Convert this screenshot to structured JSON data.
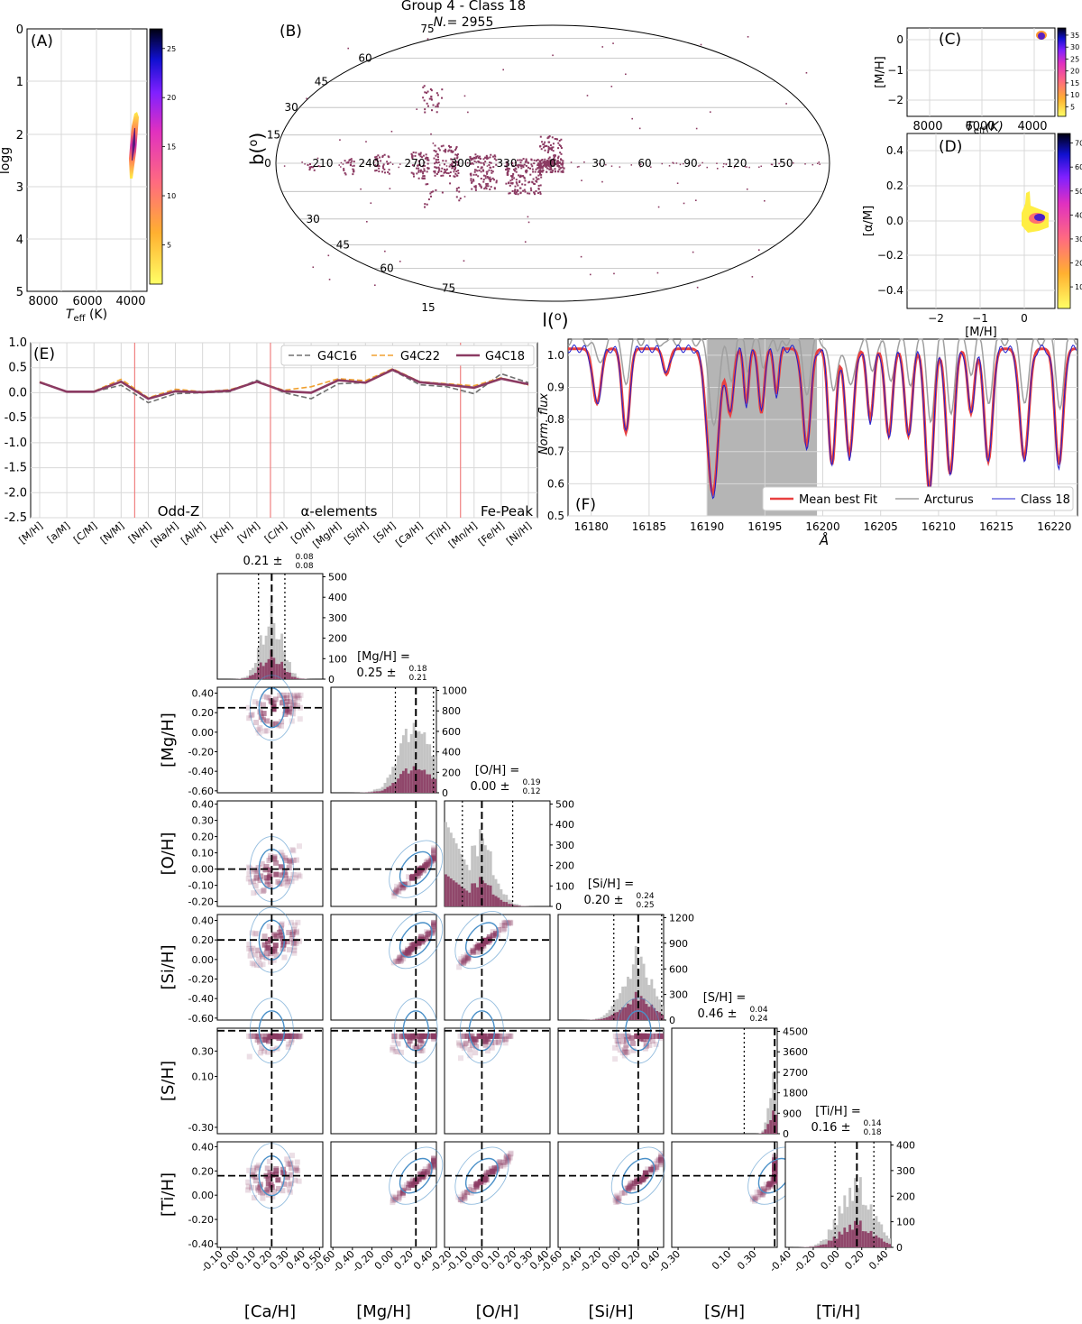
{
  "figure": {
    "title": "Group 4 - Class 18",
    "count_label": "N.",
    "count_value": "= 2955"
  },
  "colors": {
    "accent": "#8b3a62",
    "grey": "#c4c4c4",
    "contour": "#4a90c8",
    "red": "#e84040",
    "blue": "#2020d0",
    "arcturus": "#a0a0a0",
    "vline": "#f08080"
  },
  "chart_data": [
    {
      "id": "A",
      "type": "scatter",
      "panel_label": "(A)",
      "xlabel": "T_eff (K)",
      "ylabel": "logg",
      "xlim": [
        8500,
        3500
      ],
      "ylim": [
        0,
        5
      ],
      "x_ticks": [
        8000,
        6000,
        4000
      ],
      "y_ticks": [
        0,
        1,
        2,
        3,
        4,
        5
      ],
      "colorbar_ticks": [
        5,
        10,
        15,
        20,
        25
      ],
      "colorbar_range": [
        1,
        27
      ],
      "cluster": {
        "teff": [
          3900,
          4150
        ],
        "logg": [
          1.2,
          2.1
        ]
      }
    },
    {
      "id": "B",
      "type": "scatter",
      "panel_label": "(B)",
      "projection": "mollweide",
      "xlabel": "l(o)",
      "ylabel": "b(o)",
      "lon_labels": [
        "150",
        "120",
        "90",
        "60",
        "30",
        "0",
        "330",
        "300",
        "270",
        "240",
        "210"
      ],
      "lat_labels_top": [
        "75",
        "60",
        "45",
        "30",
        "15",
        "0"
      ],
      "lat_labels_bottom": [
        "75",
        "60",
        "45",
        "30",
        "15"
      ]
    },
    {
      "id": "C",
      "type": "scatter",
      "panel_label": "(C)",
      "xlabel": "T_eff (K)",
      "ylabel": "[M/H]",
      "xlim": [
        8500,
        3500
      ],
      "ylim": [
        -2.4,
        0.5
      ],
      "x_ticks": [
        8000,
        6000,
        4000
      ],
      "y_ticks": [
        0,
        -1,
        -2
      ],
      "colorbar_ticks": [
        5,
        10,
        15,
        20,
        25,
        30,
        35
      ],
      "colorbar_range": [
        1,
        38
      ]
    },
    {
      "id": "D",
      "type": "scatter",
      "panel_label": "(D)",
      "xlabel": "[M/H]",
      "ylabel": "[α/M]",
      "xlim": [
        -2.6,
        0.7
      ],
      "ylim": [
        -0.5,
        0.5
      ],
      "x_ticks": [
        -2,
        -1,
        0
      ],
      "y_ticks": [
        0.4,
        0.2,
        0.0,
        -0.2,
        -0.4
      ],
      "colorbar_ticks": [
        10,
        20,
        30,
        40,
        50,
        60,
        70
      ],
      "colorbar_range": [
        1,
        74
      ]
    },
    {
      "id": "E",
      "type": "line",
      "panel_label": "(E)",
      "ylim": [
        -2.5,
        1.0
      ],
      "y_ticks": [
        1.0,
        0.5,
        0.0,
        -0.5,
        -1.0,
        -1.5,
        -2.0,
        -2.5
      ],
      "categories": [
        "[M/H]",
        "[a/M]",
        "[C/M]",
        "[N/M]",
        "[N/H]",
        "[Na/H]",
        "[Al/H]",
        "[K/H]",
        "[V/H]",
        "[C/H]",
        "[O/H]",
        "[Mg/H]",
        "[Si/H]",
        "[S/H]",
        "[Ca/H]",
        "[Ti/H]",
        "[Mn/H]",
        "[Fe/H]",
        "[Ni/H]"
      ],
      "group_labels": [
        "Odd-Z",
        "α-elements",
        "Fe-Peak"
      ],
      "series": [
        {
          "name": "G4C16",
          "values": [
            0.2,
            0.02,
            0.02,
            0.15,
            -0.2,
            -0.02,
            0.0,
            0.02,
            0.25,
            0.0,
            -0.12,
            0.18,
            0.2,
            0.45,
            0.16,
            0.12,
            -0.02,
            0.38,
            0.2
          ]
        },
        {
          "name": "G4C22",
          "values": [
            0.22,
            0.02,
            0.03,
            0.27,
            -0.1,
            0.07,
            0.02,
            0.06,
            0.22,
            0.05,
            0.12,
            0.28,
            0.24,
            0.48,
            0.22,
            0.18,
            0.14,
            0.3,
            0.15
          ]
        },
        {
          "name": "G4C18",
          "values": [
            0.21,
            0.02,
            0.02,
            0.22,
            -0.12,
            0.03,
            0.01,
            0.04,
            0.22,
            0.03,
            0.0,
            0.25,
            0.2,
            0.46,
            0.21,
            0.16,
            0.1,
            0.28,
            0.17
          ]
        }
      ]
    },
    {
      "id": "F",
      "type": "line",
      "panel_label": "(F)",
      "xlabel": "Å",
      "ylabel": "Norm. flux",
      "xlim": [
        16178,
        16222
      ],
      "ylim": [
        0.5,
        1.05
      ],
      "x_ticks": [
        16180,
        16185,
        16190,
        16195,
        16200,
        16205,
        16210,
        16215,
        16220
      ],
      "y_ticks": [
        1.0,
        0.9,
        0.8,
        0.7,
        0.6,
        0.5
      ],
      "shaded_region": [
        16190,
        16199.5
      ],
      "series": [
        {
          "name": "Mean best Fit"
        },
        {
          "name": "Arcturus"
        },
        {
          "name": "Class 18"
        }
      ]
    },
    {
      "id": "corner",
      "type": "scatter",
      "params": [
        "[Ca/H]",
        "[Mg/H]",
        "[O/H]",
        "[Si/H]",
        "[S/H]",
        "[Ti/H]"
      ],
      "medians": [
        0.21,
        0.25,
        0.0,
        0.2,
        0.46,
        0.16
      ],
      "titles": [
        {
          "label": "",
          "value": "0.21",
          "plus": "0.08",
          "minus": "0.08"
        },
        {
          "label": "[Mg/H] =",
          "value": "0.25",
          "plus": "0.18",
          "minus": "0.21"
        },
        {
          "label": "[O/H] =",
          "value": "0.00",
          "plus": "0.19",
          "minus": "0.12"
        },
        {
          "label": "[Si/H] =",
          "value": "0.20",
          "plus": "0.24",
          "minus": "0.25"
        },
        {
          "label": "[S/H] =",
          "value": "0.46",
          "plus": "0.04",
          "minus": "0.24"
        },
        {
          "label": "[Ti/H] =",
          "value": "0.16",
          "plus": "0.14",
          "minus": "0.18"
        }
      ],
      "ranges": [
        [
          -0.12,
          0.52
        ],
        [
          -0.62,
          0.46
        ],
        [
          -0.23,
          0.42
        ],
        [
          -0.62,
          0.46
        ],
        [
          -0.35,
          0.48
        ],
        [
          -0.43,
          0.44
        ]
      ],
      "x_tick_values": [
        [
          -0.1,
          0.0,
          0.1,
          0.2,
          0.3,
          0.4,
          0.5
        ],
        [
          -0.6,
          -0.4,
          -0.2,
          0.0,
          0.2,
          0.4
        ],
        [
          -0.2,
          -0.1,
          0.0,
          0.1,
          0.2,
          0.3,
          0.4
        ],
        [
          -0.6,
          -0.4,
          -0.2,
          0.0,
          0.2,
          0.4
        ],
        [
          -0.3,
          0.1,
          0.3
        ],
        [
          -0.4,
          -0.2,
          0.0,
          0.2,
          0.4
        ]
      ],
      "x_tick_labels": [
        [
          "-0.10",
          "0.00",
          "0.10",
          "0.20",
          "0.30",
          "0.40",
          "0.50"
        ],
        [
          "-0.60",
          "-0.40",
          "-0.20",
          "0.00",
          "0.20",
          "0.40"
        ],
        [
          "-0.20",
          "-0.10",
          "0.00",
          "0.10",
          "0.20",
          "0.30",
          "0.40"
        ],
        [
          "-0.60",
          "-0.40",
          "-0.20",
          "0.00",
          "0.20",
          "0.40"
        ],
        [
          "-0.30",
          "0.10",
          "0.30"
        ],
        [
          "-0.40",
          "-0.20",
          "0.00",
          "0.20",
          "0.40"
        ]
      ],
      "y_tick_values": [
        [],
        [
          0.4,
          0.2,
          0.0,
          -0.2,
          -0.4,
          -0.6
        ],
        [
          0.4,
          0.3,
          0.2,
          0.1,
          0.0,
          -0.1,
          -0.2
        ],
        [
          0.4,
          0.2,
          0.0,
          -0.2,
          -0.4,
          -0.6
        ],
        [
          0.3,
          0.1,
          -0.3
        ],
        [
          0.4,
          0.2,
          0.0,
          -0.2,
          -0.4
        ]
      ],
      "y_tick_labels": [
        [],
        [
          "0.40",
          "0.20",
          "0.00",
          "-0.20",
          "-0.40",
          "-0.60"
        ],
        [
          "0.40",
          "0.30",
          "0.20",
          "0.10",
          "0.00",
          "-0.10",
          "-0.20"
        ],
        [
          "0.40",
          "0.20",
          "0.00",
          "-0.20",
          "-0.40",
          "-0.60"
        ],
        [
          "0.30",
          "0.10",
          "-0.30"
        ],
        [
          "0.40",
          "0.20",
          "0.00",
          "-0.20",
          "-0.40"
        ]
      ],
      "hist_count_ticks": [
        [
          0,
          100,
          200,
          300,
          400,
          500
        ],
        [
          0,
          200,
          400,
          600,
          800,
          1000
        ],
        [
          0,
          100,
          200,
          300,
          400,
          500
        ],
        [
          0,
          300,
          600,
          900,
          1200
        ],
        [
          0,
          900,
          1800,
          2700,
          3600,
          4500
        ],
        [
          0,
          100,
          200,
          300,
          400
        ]
      ]
    }
  ]
}
